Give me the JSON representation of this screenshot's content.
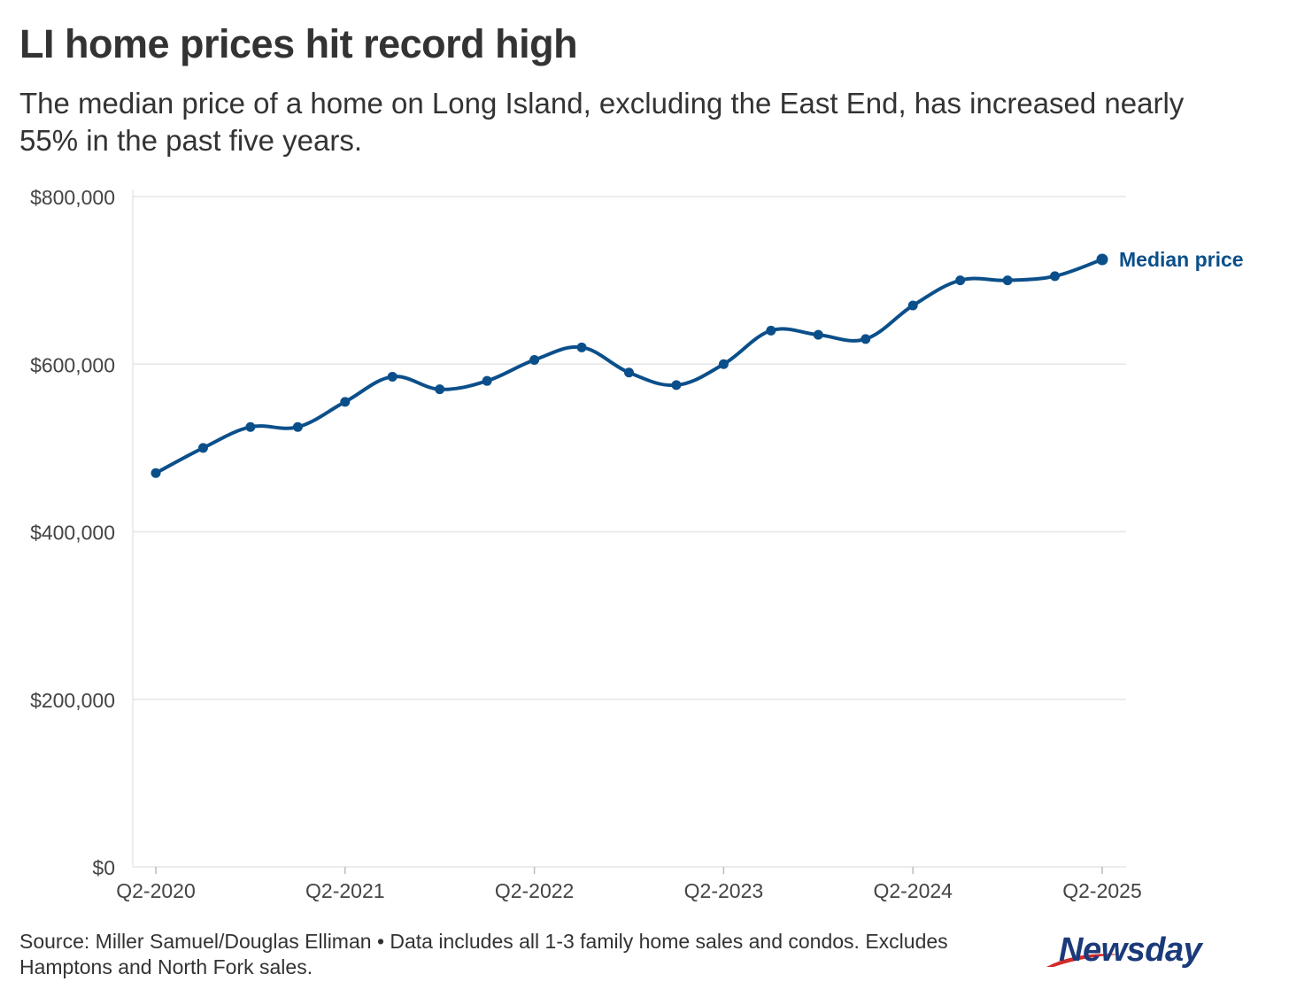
{
  "title": "LI home prices hit record high",
  "subtitle": "The median price of a home on Long Island, excluding the East End, has increased nearly 55% in the past five years.",
  "source": "Source: Miller Samuel/Douglas Elliman • Data includes all 1-3 family home sales and condos. Excludes Hamptons and North Fork sales.",
  "logo": "Newsday",
  "colors": {
    "line": "#0b4f8a",
    "grid": "#e6e6e6",
    "text": "#333333",
    "axis_text": "#444444",
    "logo": "#1a3a7a",
    "logo_swoosh": "#d42a2a"
  },
  "chart_data": {
    "type": "line",
    "title": "LI home prices hit record high",
    "xlabel": "",
    "ylabel": "",
    "ylim": [
      0,
      800000
    ],
    "yticks": [
      0,
      200000,
      400000,
      600000,
      800000
    ],
    "ytick_labels": [
      "$0",
      "$200,000",
      "$400,000",
      "$600,000",
      "$800,000"
    ],
    "xtick_labels": [
      "Q2-2020",
      "Q2-2021",
      "Q2-2022",
      "Q2-2023",
      "Q2-2024",
      "Q2-2025"
    ],
    "xtick_indices": [
      0,
      4,
      8,
      12,
      16,
      20
    ],
    "categories": [
      "Q2-2020",
      "Q3-2020",
      "Q4-2020",
      "Q1-2021",
      "Q2-2021",
      "Q3-2021",
      "Q4-2021",
      "Q1-2022",
      "Q2-2022",
      "Q3-2022",
      "Q4-2022",
      "Q1-2023",
      "Q2-2023",
      "Q3-2023",
      "Q4-2023",
      "Q1-2024",
      "Q2-2024",
      "Q3-2024",
      "Q4-2024",
      "Q1-2025",
      "Q2-2025"
    ],
    "series": [
      {
        "name": "Median price",
        "values": [
          470000,
          500000,
          525000,
          525000,
          555000,
          585000,
          570000,
          580000,
          605000,
          620000,
          590000,
          575000,
          600000,
          640000,
          635000,
          630000,
          670000,
          700000,
          700000,
          705000,
          725000
        ]
      }
    ],
    "grid": true,
    "legend": "direct label at end of line"
  }
}
